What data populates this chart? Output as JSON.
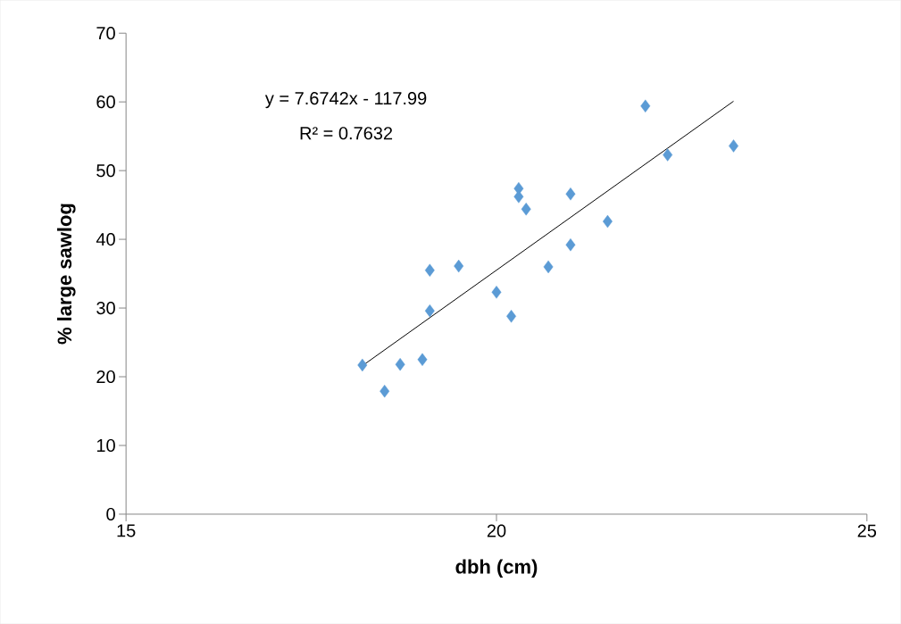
{
  "chart_data": {
    "type": "scatter",
    "xlabel": "dbh (cm)",
    "ylabel": "% large sawlog",
    "xlim": [
      15,
      25
    ],
    "xticks": [
      15,
      20,
      25
    ],
    "ylim": [
      0,
      70
    ],
    "yticks": [
      0,
      10,
      20,
      30,
      40,
      50,
      60,
      70
    ],
    "marker": "diamond",
    "series": [
      {
        "color": "#5b9bd5",
        "x": [
          18.19,
          18.49,
          18.7,
          19.0,
          19.1,
          19.1,
          19.49,
          20.0,
          20.2,
          20.3,
          20.3,
          20.4,
          20.7,
          21.0,
          21.0,
          21.5,
          22.01,
          22.31,
          23.2
        ],
        "values": [
          21.7,
          17.9,
          21.8,
          22.5,
          29.6,
          35.5,
          36.1,
          32.3,
          28.8,
          47.4,
          46.2,
          44.4,
          36.0,
          39.2,
          46.6,
          42.6,
          59.4,
          52.3,
          53.6
        ]
      },
      {
        "type": "line",
        "color": "#000000",
        "marker": "none",
        "x": [
          18.19,
          23.2
        ],
        "values": [
          21.6,
          60.1
        ]
      }
    ],
    "annotations": [
      "y = 7.6742x - 117.99",
      "R² = 0.7632"
    ]
  }
}
